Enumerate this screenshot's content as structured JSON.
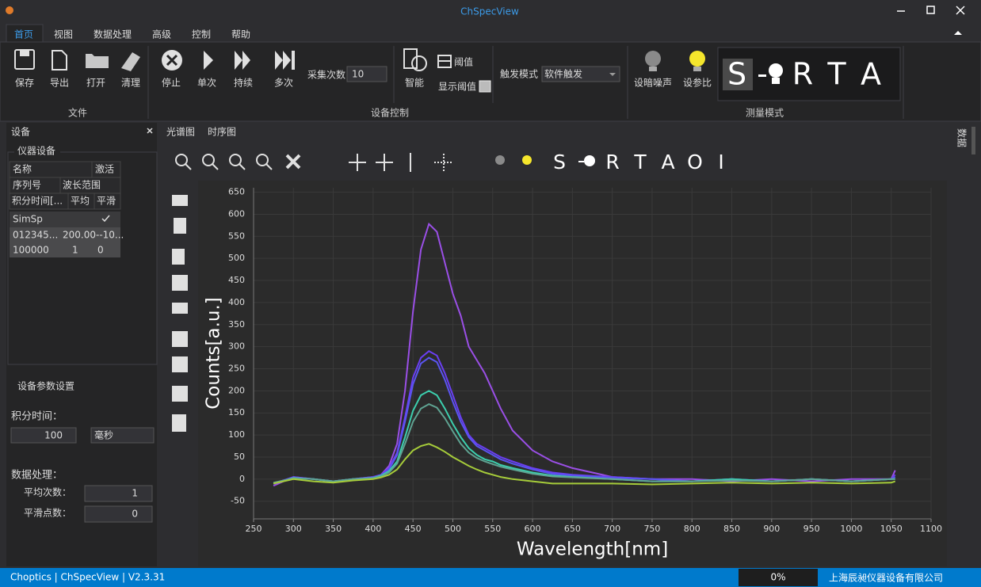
{
  "window": {
    "title": "ChSpecView"
  },
  "menu": [
    "首页",
    "视图",
    "数据处理",
    "高级",
    "控制",
    "帮助"
  ],
  "ribbon": {
    "file_buttons": [
      "保存",
      "导出",
      "打开",
      "清理"
    ],
    "file_group": "文件",
    "control_buttons": [
      "停止",
      "单次",
      "持续",
      "多次"
    ],
    "acq_count_label": "采集次数",
    "acq_count": 10,
    "smart": "智能",
    "threshold": "阈值",
    "show_threshold": "显示阈值",
    "trigger_label": "触发模式",
    "trigger_mode": "软件触发",
    "control_group": "设备控制",
    "measure_buttons": [
      "设暗噪声",
      "设参比"
    ],
    "mode_letters": [
      "S",
      "R",
      "T",
      "A"
    ],
    "measure_group": "测量模式"
  },
  "panel": {
    "title": "设备",
    "section": "仪器设备",
    "header_rows": [
      [
        "名称",
        "激活"
      ],
      [
        "序列号",
        "波长范围"
      ],
      [
        "积分时间[...",
        "平均",
        "平滑"
      ]
    ],
    "device_rows": [
      [
        "SimSp"
      ],
      [
        "012345...",
        "200.00--10..."
      ],
      [
        "100000",
        "1",
        "0"
      ]
    ],
    "params_title": "设备参数设置",
    "integration_label": "积分时间：",
    "integration_value": 100,
    "integration_unit": "毫秒",
    "processing_label": "数据处理：",
    "avg_label": "平均次数：",
    "avg_value": 1,
    "smooth_label": "平滑点数：",
    "smooth_value": 0
  },
  "tabs": [
    "光谱图",
    "时序图"
  ],
  "side_tab": "数据",
  "toolbar_letters": [
    "S",
    "R",
    "T",
    "A",
    "O",
    "I"
  ],
  "plot": {
    "type": "line",
    "x_label": "Wavelength[nm]",
    "y_label": "Counts[a.u.]",
    "xlim": [
      250,
      1100
    ],
    "ylim": [
      -90,
      660
    ],
    "xticks": [
      250,
      300,
      350,
      400,
      450,
      500,
      550,
      600,
      650,
      700,
      750,
      800,
      850,
      900,
      950,
      1000,
      1050,
      1100
    ],
    "yticks": [
      -50,
      0,
      50,
      100,
      150,
      200,
      250,
      300,
      350,
      400,
      450,
      500,
      550,
      600,
      650
    ],
    "grid": true,
    "x": [
      275,
      300,
      325,
      350,
      375,
      400,
      410,
      420,
      430,
      440,
      450,
      460,
      470,
      480,
      490,
      500,
      510,
      520,
      530,
      540,
      550,
      560,
      575,
      600,
      625,
      650,
      700,
      750,
      800,
      850,
      900,
      950,
      1000,
      1050,
      1055
    ],
    "series": [
      {
        "color": "#9a4fe6",
        "values": [
          -15,
          5,
          0,
          -5,
          0,
          5,
          10,
          30,
          80,
          200,
          380,
          520,
          578,
          560,
          490,
          420,
          370,
          300,
          270,
          240,
          200,
          160,
          110,
          65,
          40,
          25,
          5,
          0,
          0,
          -5,
          0,
          -5,
          0,
          0,
          20
        ]
      },
      {
        "color": "#6a3ef2",
        "values": [
          -10,
          5,
          0,
          -5,
          0,
          5,
          10,
          25,
          60,
          140,
          230,
          275,
          290,
          280,
          240,
          190,
          140,
          100,
          80,
          70,
          60,
          50,
          40,
          25,
          15,
          10,
          5,
          0,
          -5,
          0,
          -5,
          0,
          -5,
          0,
          10
        ]
      },
      {
        "color": "#5a55f0",
        "values": [
          -10,
          3,
          0,
          -5,
          0,
          3,
          8,
          22,
          55,
          130,
          215,
          262,
          275,
          265,
          225,
          175,
          130,
          95,
          75,
          65,
          55,
          45,
          35,
          22,
          12,
          8,
          3,
          0,
          -5,
          0,
          -5,
          0,
          -5,
          0,
          5
        ]
      },
      {
        "color": "#3ccfae",
        "values": [
          -10,
          3,
          0,
          -5,
          0,
          3,
          8,
          18,
          40,
          95,
          155,
          190,
          200,
          190,
          160,
          125,
          95,
          70,
          55,
          45,
          40,
          32,
          25,
          15,
          8,
          5,
          0,
          -5,
          -5,
          0,
          -5,
          0,
          -5,
          0,
          0
        ]
      },
      {
        "color": "#5fa392",
        "values": [
          -8,
          2,
          0,
          -5,
          0,
          2,
          6,
          15,
          35,
          80,
          130,
          160,
          170,
          162,
          138,
          108,
          80,
          60,
          48,
          40,
          34,
          28,
          22,
          12,
          6,
          4,
          0,
          -5,
          -5,
          -3,
          -5,
          0,
          -5,
          0,
          0
        ]
      },
      {
        "color": "#a6cc3a",
        "values": [
          -10,
          0,
          -5,
          -8,
          -3,
          0,
          4,
          10,
          22,
          45,
          65,
          75,
          80,
          72,
          62,
          50,
          40,
          30,
          22,
          15,
          10,
          5,
          0,
          -5,
          -10,
          -10,
          -10,
          -12,
          -10,
          -8,
          -10,
          -8,
          -10,
          -8,
          -5
        ]
      }
    ]
  },
  "status": {
    "app": "Choptics | ChSpecView | V2.3.31",
    "progress": "0%",
    "company": "上海辰昶仪器设备有限公司"
  }
}
